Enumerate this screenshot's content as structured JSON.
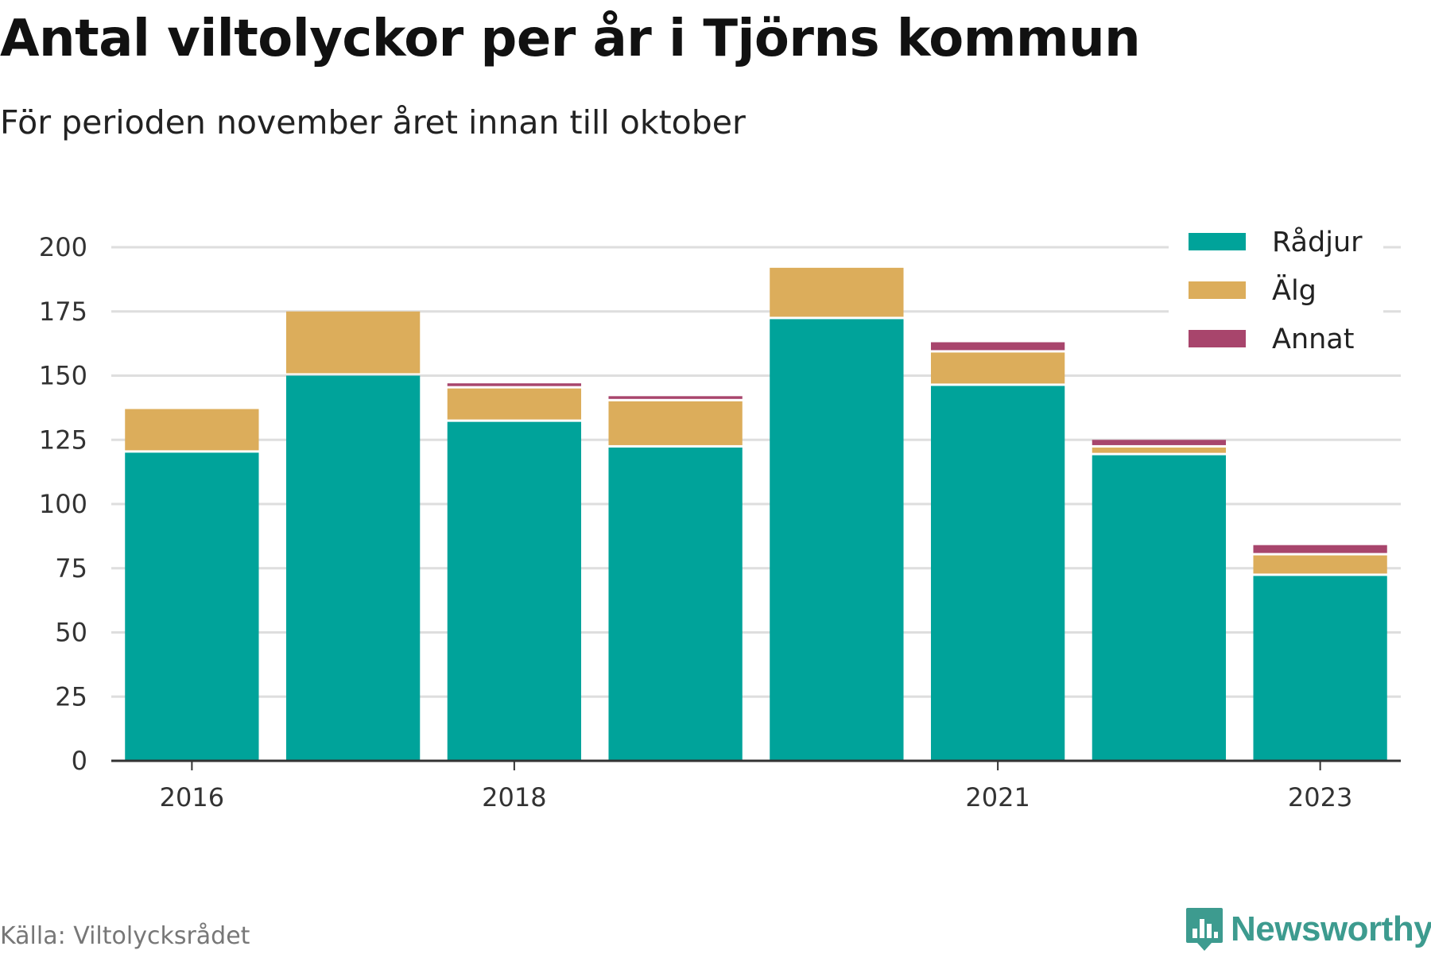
{
  "header": {
    "title": "Antal viltolyckor per år i Tjörns kommun",
    "subtitle": "För perioden november året innan till oktober"
  },
  "footer": {
    "source": "Källa: Viltolycksrådet",
    "brand": "Newsworthy"
  },
  "chart_data": {
    "type": "bar",
    "stacked": true,
    "categories": [
      "2016",
      "2017",
      "2018",
      "2019",
      "2020",
      "2021",
      "2022",
      "2023"
    ],
    "x_tick_labels": [
      "2016",
      "2018",
      "2021",
      "2023"
    ],
    "series": [
      {
        "name": "Rådjur",
        "color": "#00a39a",
        "values": [
          120,
          150,
          132,
          122,
          172,
          146,
          119,
          72
        ]
      },
      {
        "name": "Älg",
        "color": "#dcad5b",
        "values": [
          17,
          25,
          13,
          18,
          20,
          13,
          3,
          8
        ]
      },
      {
        "name": "Annat",
        "color": "#a8456c",
        "values": [
          0,
          0,
          2,
          2,
          0,
          4,
          3,
          4
        ]
      }
    ],
    "y_ticks": [
      0,
      25,
      50,
      75,
      100,
      125,
      150,
      175,
      200
    ],
    "ylim": [
      0,
      200
    ],
    "grid": true,
    "legend": "top-right"
  }
}
